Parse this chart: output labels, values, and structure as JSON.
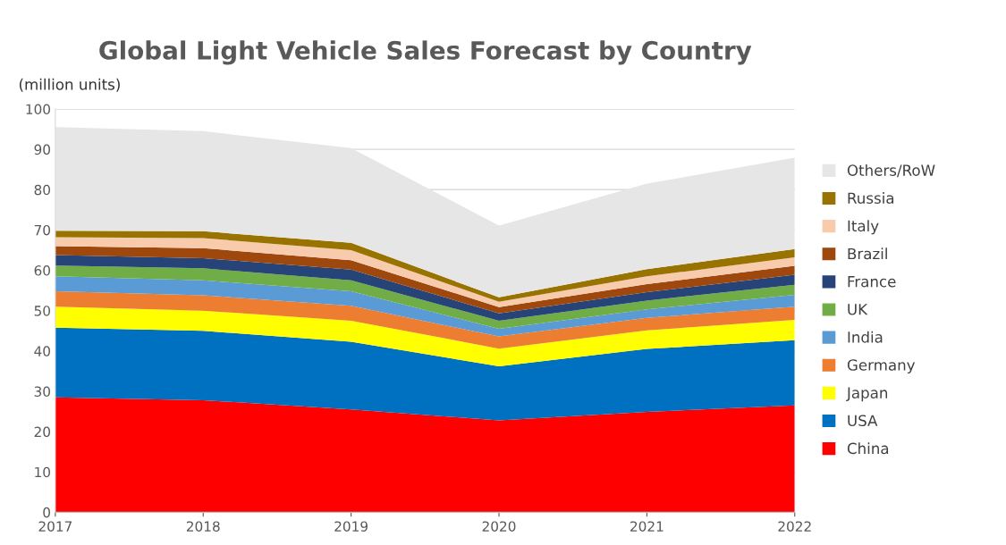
{
  "chart_data": {
    "type": "area",
    "stacked": true,
    "title": "Global Light Vehicle Sales Forecast by Country",
    "ylabel": "(million units)",
    "categories": [
      "2017",
      "2018",
      "2019",
      "2020",
      "2021",
      "2022"
    ],
    "series": [
      {
        "name": "China",
        "color": "#ff0000",
        "values": [
          28.5,
          27.8,
          25.5,
          22.8,
          24.9,
          26.5
        ]
      },
      {
        "name": "USA",
        "color": "#0070c0",
        "values": [
          17.3,
          17.2,
          16.8,
          13.4,
          15.6,
          16.2
        ]
      },
      {
        "name": "Japan",
        "color": "#ffff00",
        "values": [
          5.2,
          5.0,
          5.2,
          4.4,
          4.6,
          5.0
        ]
      },
      {
        "name": "Germany",
        "color": "#ed7d31",
        "values": [
          3.8,
          3.8,
          3.7,
          3.0,
          3.1,
          3.3
        ]
      },
      {
        "name": "India",
        "color": "#5b9bd5",
        "values": [
          3.7,
          3.7,
          3.6,
          1.9,
          2.1,
          2.9
        ]
      },
      {
        "name": "UK",
        "color": "#70ad47",
        "values": [
          2.7,
          3.0,
          2.7,
          2.0,
          2.2,
          2.5
        ]
      },
      {
        "name": "France",
        "color": "#264478",
        "values": [
          2.6,
          2.5,
          2.7,
          1.8,
          2.1,
          2.5
        ]
      },
      {
        "name": "Brazil",
        "color": "#9e480e",
        "values": [
          2.2,
          2.5,
          2.3,
          1.6,
          2.0,
          2.2
        ]
      },
      {
        "name": "Italy",
        "color": "#f8cbad",
        "values": [
          2.2,
          2.5,
          2.5,
          1.3,
          1.9,
          2.1
        ]
      },
      {
        "name": "Russia",
        "color": "#997300",
        "values": [
          1.6,
          1.7,
          1.8,
          1.1,
          1.8,
          2.1
        ]
      },
      {
        "name": "Others/RoW",
        "color": "#e7e6e6",
        "values": [
          25.7,
          24.8,
          23.5,
          17.8,
          21.2,
          22.6
        ]
      }
    ],
    "ylim": [
      0,
      100
    ],
    "yticks": [
      0,
      10,
      20,
      30,
      40,
      50,
      60,
      70,
      80,
      90,
      100
    ],
    "grid": "y",
    "legend": "right"
  }
}
